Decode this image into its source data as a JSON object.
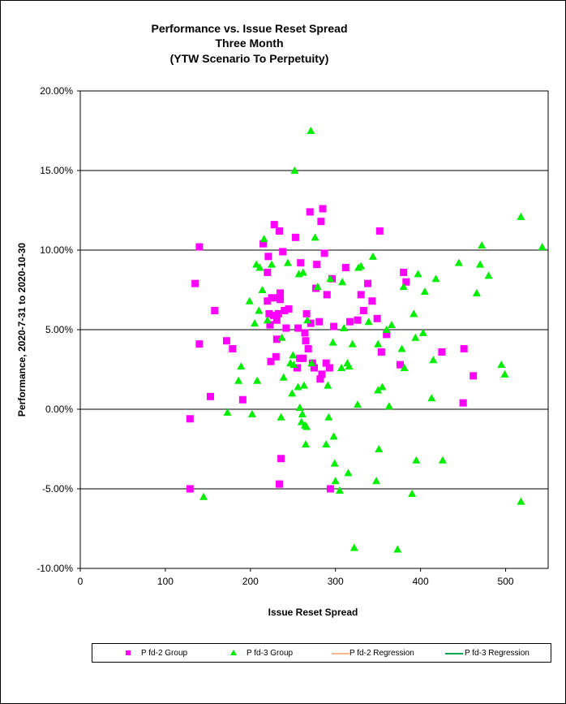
{
  "chart_data": {
    "type": "scatter",
    "title": [
      "Performance vs. Issue Reset Spread",
      "Three Month",
      "(YTW Scenario To Perpetuity)"
    ],
    "xlabel": "Issue  Reset Spread",
    "ylabel": "Performance, 2020-7-31  to  2020-10-30",
    "xlim": [
      0,
      550
    ],
    "ylim": [
      -10,
      20
    ],
    "x_ticks": [
      0,
      100,
      200,
      300,
      400,
      500
    ],
    "y_ticks": [
      -10,
      -5,
      0,
      5,
      10,
      15,
      20
    ],
    "y_tick_labels": [
      "-10.00%",
      "-5.00%",
      "0.00%",
      "5.00%",
      "10.00%",
      "15.00%",
      "20.00%"
    ],
    "grid": "horizontal",
    "legend_position": "bottom",
    "series": [
      {
        "name": "P fd-2 Group",
        "marker": "square",
        "color": "#ff00ff",
        "points": [
          [
            129,
            -0.6
          ],
          [
            129,
            -5.0
          ],
          [
            135,
            7.9
          ],
          [
            140,
            10.2
          ],
          [
            140,
            4.1
          ],
          [
            153,
            0.8
          ],
          [
            158,
            6.2
          ],
          [
            172,
            4.3
          ],
          [
            179,
            3.8
          ],
          [
            191,
            0.6
          ],
          [
            215,
            10.4
          ],
          [
            220,
            8.6
          ],
          [
            220,
            6.8
          ],
          [
            221,
            9.6
          ],
          [
            222,
            6.0
          ],
          [
            223,
            5.3
          ],
          [
            224,
            3.0
          ],
          [
            225,
            7.0
          ],
          [
            227,
            5.9
          ],
          [
            228,
            11.6
          ],
          [
            230,
            3.3
          ],
          [
            231,
            4.4
          ],
          [
            231,
            5.6
          ],
          [
            232,
            7.0
          ],
          [
            233,
            6.0
          ],
          [
            234,
            -4.7
          ],
          [
            234,
            11.2
          ],
          [
            235,
            7.3
          ],
          [
            235,
            6.9
          ],
          [
            236,
            -3.1
          ],
          [
            238,
            9.9
          ],
          [
            240,
            6.2
          ],
          [
            242,
            5.1
          ],
          [
            245,
            6.3
          ],
          [
            253,
            10.8
          ],
          [
            255,
            2.6
          ],
          [
            256,
            5.1
          ],
          [
            258,
            3.2
          ],
          [
            259,
            9.2
          ],
          [
            262,
            3.2
          ],
          [
            264,
            4.8
          ],
          [
            265,
            4.3
          ],
          [
            266,
            6.0
          ],
          [
            268,
            3.8
          ],
          [
            270,
            12.4
          ],
          [
            271,
            5.4
          ],
          [
            273,
            2.9
          ],
          [
            275,
            2.6
          ],
          [
            277,
            7.6
          ],
          [
            278,
            9.1
          ],
          [
            281,
            5.5
          ],
          [
            282,
            1.9
          ],
          [
            283,
            11.8
          ],
          [
            284,
            2.2
          ],
          [
            285,
            12.6
          ],
          [
            287,
            9.8
          ],
          [
            289,
            2.9
          ],
          [
            290,
            7.2
          ],
          [
            293,
            2.6
          ],
          [
            294,
            -5.0
          ],
          [
            296,
            8.2
          ],
          [
            298,
            5.2
          ],
          [
            312,
            8.9
          ],
          [
            317,
            5.5
          ],
          [
            326,
            5.6
          ],
          [
            330,
            7.2
          ],
          [
            333,
            6.2
          ],
          [
            338,
            7.9
          ],
          [
            343,
            6.8
          ],
          [
            349,
            5.7
          ],
          [
            352,
            11.2
          ],
          [
            354,
            3.6
          ],
          [
            360,
            4.7
          ],
          [
            376,
            2.8
          ],
          [
            380,
            8.6
          ],
          [
            383,
            8.0
          ],
          [
            425,
            3.6
          ],
          [
            450,
            0.4
          ],
          [
            451,
            3.8
          ],
          [
            462,
            2.1
          ]
        ]
      },
      {
        "name": "P fd-3 Group",
        "marker": "triangle",
        "color": "#00ee00",
        "points": [
          [
            145,
            -5.5
          ],
          [
            173,
            -0.2
          ],
          [
            186,
            1.8
          ],
          [
            189,
            2.7
          ],
          [
            199,
            6.8
          ],
          [
            202,
            -0.3
          ],
          [
            205,
            5.4
          ],
          [
            207,
            9.1
          ],
          [
            208,
            1.8
          ],
          [
            210,
            6.2
          ],
          [
            211,
            8.9
          ],
          [
            214,
            7.5
          ],
          [
            216,
            10.7
          ],
          [
            220,
            5.6
          ],
          [
            225,
            9.1
          ],
          [
            236,
            -0.5
          ],
          [
            237,
            4.5
          ],
          [
            239,
            2.0
          ],
          [
            244,
            9.2
          ],
          [
            247,
            2.9
          ],
          [
            249,
            1.0
          ],
          [
            250,
            3.4
          ],
          [
            251,
            2.8
          ],
          [
            252,
            15.0
          ],
          [
            256,
            1.4
          ],
          [
            257,
            8.5
          ],
          [
            258,
            0.1
          ],
          [
            260,
            -0.8
          ],
          [
            261,
            -0.3
          ],
          [
            262,
            8.6
          ],
          [
            263,
            1.5
          ],
          [
            264,
            -1.0
          ],
          [
            265,
            -2.2
          ],
          [
            266,
            -1.1
          ],
          [
            267,
            5.6
          ],
          [
            271,
            17.5
          ],
          [
            272,
            2.9
          ],
          [
            276,
            10.8
          ],
          [
            279,
            7.7
          ],
          [
            289,
            -2.2
          ],
          [
            291,
            1.5
          ],
          [
            292,
            -0.5
          ],
          [
            294,
            8.2
          ],
          [
            297,
            4.2
          ],
          [
            298,
            -1.7
          ],
          [
            299,
            -3.4
          ],
          [
            300,
            -4.5
          ],
          [
            305,
            -5.1
          ],
          [
            307,
            2.6
          ],
          [
            308,
            8.0
          ],
          [
            310,
            5.1
          ],
          [
            314,
            2.9
          ],
          [
            315,
            -4.0
          ],
          [
            316,
            2.7
          ],
          [
            320,
            4.1
          ],
          [
            322,
            -8.7
          ],
          [
            326,
            0.3
          ],
          [
            327,
            8.9
          ],
          [
            330,
            9.0
          ],
          [
            339,
            5.5
          ],
          [
            344,
            9.6
          ],
          [
            348,
            -4.5
          ],
          [
            350,
            4.1
          ],
          [
            350,
            1.2
          ],
          [
            351,
            -2.5
          ],
          [
            355,
            1.4
          ],
          [
            360,
            5.0
          ],
          [
            363,
            0.2
          ],
          [
            366,
            5.3
          ],
          [
            373,
            -8.8
          ],
          [
            378,
            3.8
          ],
          [
            380,
            7.7
          ],
          [
            381,
            2.6
          ],
          [
            390,
            -5.3
          ],
          [
            392,
            6.0
          ],
          [
            394,
            4.5
          ],
          [
            395,
            -3.2
          ],
          [
            397,
            8.5
          ],
          [
            403,
            4.8
          ],
          [
            405,
            7.4
          ],
          [
            413,
            0.7
          ],
          [
            415,
            3.1
          ],
          [
            418,
            8.2
          ],
          [
            426,
            -3.2
          ],
          [
            445,
            9.2
          ],
          [
            466,
            7.3
          ],
          [
            470,
            9.1
          ],
          [
            472,
            10.3
          ],
          [
            480,
            8.4
          ],
          [
            495,
            2.8
          ],
          [
            499,
            2.2
          ],
          [
            518,
            12.1
          ],
          [
            518,
            -5.8
          ],
          [
            543,
            10.2
          ]
        ]
      },
      {
        "name": "P fd-2 Regression",
        "color": "#f6b790",
        "values": []
      },
      {
        "name": "P fd-3 Regression",
        "color": "#00a651",
        "values": []
      }
    ]
  }
}
